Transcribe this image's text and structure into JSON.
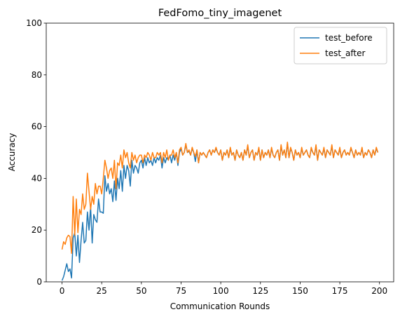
{
  "chart_data": {
    "type": "line",
    "title": "FedFomo_tiny_imagenet",
    "xlabel": "Communication Rounds",
    "ylabel": "Accuracy",
    "x": [
      0,
      1,
      2,
      3,
      4,
      5,
      6,
      7,
      8,
      9,
      10,
      11,
      12,
      13,
      14,
      15,
      16,
      17,
      18,
      19,
      20,
      21,
      22,
      23,
      24,
      25,
      26,
      27,
      28,
      29,
      30,
      31,
      32,
      33,
      34,
      35,
      36,
      37,
      38,
      39,
      40,
      41,
      42,
      43,
      44,
      45,
      46,
      47,
      48,
      49,
      50,
      51,
      52,
      53,
      54,
      55,
      56,
      57,
      58,
      59,
      60,
      61,
      62,
      63,
      64,
      65,
      66,
      67,
      68,
      69,
      70,
      71,
      72,
      73,
      74,
      75,
      76,
      77,
      78,
      79,
      80,
      81,
      82,
      83,
      84,
      85,
      86,
      87,
      88,
      89,
      90,
      91,
      92,
      93,
      94,
      95,
      96,
      97,
      98,
      99,
      100,
      101,
      102,
      103,
      104,
      105,
      106,
      107,
      108,
      109,
      110,
      111,
      112,
      113,
      114,
      115,
      116,
      117,
      118,
      119,
      120,
      121,
      122,
      123,
      124,
      125,
      126,
      127,
      128,
      129,
      130,
      131,
      132,
      133,
      134,
      135,
      136,
      137,
      138,
      139,
      140,
      141,
      142,
      143,
      144,
      145,
      146,
      147,
      148,
      149,
      150,
      151,
      152,
      153,
      154,
      155,
      156,
      157,
      158,
      159,
      160,
      161,
      162,
      163,
      164,
      165,
      166,
      167,
      168,
      169,
      170,
      171,
      172,
      173,
      174,
      175,
      176,
      177,
      178,
      179,
      180,
      181,
      182,
      183,
      184,
      185,
      186,
      187,
      188,
      189,
      190,
      191,
      192,
      193,
      194,
      195,
      196,
      197,
      198,
      199
    ],
    "series": [
      {
        "name": "test_before",
        "color": "#1f77b4",
        "values": [
          0.5,
          2,
          4.5,
          7,
          4,
          5,
          1.5,
          17,
          19,
          10,
          18,
          7.5,
          16,
          23,
          15,
          16,
          27,
          20,
          29,
          15,
          26,
          24,
          23,
          32,
          27,
          27,
          26.5,
          41,
          35,
          38,
          34,
          36,
          31,
          39,
          31.5,
          40,
          36,
          43,
          35,
          45,
          40,
          45,
          43,
          37,
          47,
          42,
          45,
          44,
          42,
          46,
          47,
          44,
          48,
          45,
          48,
          46,
          47,
          45,
          48,
          46,
          48,
          47,
          49,
          44,
          48,
          46,
          48,
          47,
          49,
          46,
          49,
          47,
          50,
          45,
          50,
          51.5,
          49,
          50,
          53,
          50,
          50.5,
          49,
          51.5,
          50,
          46.5,
          51,
          46,
          50,
          49,
          50,
          49,
          48,
          50,
          51,
          49,
          51,
          50,
          51.5,
          50,
          49,
          51,
          47,
          50,
          49,
          51,
          48,
          51.5,
          49,
          50,
          47,
          51,
          49,
          48,
          50,
          47,
          51,
          49,
          52.5,
          48,
          50,
          51,
          47,
          50,
          49,
          51.5,
          47,
          51,
          48,
          50,
          49,
          51,
          48,
          51.5,
          49,
          48,
          50,
          51,
          47,
          52.5,
          49,
          51,
          48,
          53.5,
          48,
          51.5,
          50,
          47,
          51,
          49,
          50,
          48,
          51.5,
          49,
          50,
          51,
          49,
          48,
          51.5,
          50,
          49,
          52.5,
          47,
          51,
          50,
          49,
          51.5,
          48,
          51,
          50,
          49,
          52.5,
          48,
          51,
          50,
          49,
          51.5,
          48,
          50,
          51,
          49,
          50,
          49,
          51.5,
          50,
          48,
          51,
          49,
          50,
          49,
          51.5,
          48,
          50,
          49,
          51,
          50,
          48,
          51,
          49,
          51.5,
          50
        ]
      },
      {
        "name": "test_after",
        "color": "#ff7f0e",
        "values": [
          12.5,
          15.5,
          14.5,
          17,
          18,
          17.5,
          11,
          33,
          18,
          32,
          19,
          28,
          26,
          34,
          28,
          30,
          42,
          35,
          28,
          33,
          30,
          38,
          34,
          37,
          37,
          34,
          40,
          47,
          44,
          40,
          43,
          44,
          40,
          47,
          36,
          46,
          45,
          49,
          44,
          51,
          48,
          50,
          46,
          44,
          50,
          47,
          49,
          46,
          48,
          49,
          49,
          46,
          49,
          48,
          50,
          49,
          47,
          50,
          48,
          48,
          50,
          49,
          50,
          46,
          50,
          48,
          51,
          47,
          49,
          49,
          51,
          48,
          50,
          46,
          51,
          52,
          49,
          50,
          53.5,
          50,
          51,
          49,
          52,
          50,
          48.5,
          51,
          46,
          50,
          49,
          50,
          49,
          48,
          50,
          51,
          49,
          51,
          50,
          52,
          50,
          49,
          51,
          47,
          50,
          49,
          51,
          48,
          52,
          49,
          50,
          47,
          51,
          49,
          48,
          50,
          47,
          51,
          49,
          53,
          48,
          50,
          51,
          47,
          50,
          49,
          52,
          47,
          51,
          48,
          50,
          49,
          51,
          48,
          52,
          49,
          48,
          50,
          51,
          47,
          53,
          49,
          51,
          48,
          54,
          48,
          52,
          50,
          47,
          51,
          49,
          50,
          48,
          52,
          49,
          50,
          51,
          49,
          48,
          52,
          50,
          49,
          53,
          47,
          51,
          50,
          49,
          52,
          48,
          51,
          50,
          49,
          53,
          48,
          51,
          50,
          49,
          52,
          48,
          50,
          51,
          49,
          50,
          49,
          52,
          50,
          48,
          51,
          49,
          50,
          49,
          52,
          48,
          50,
          49,
          51,
          50,
          48,
          51,
          49,
          52,
          50
        ]
      }
    ],
    "xlim": [
      -9.95,
      208.95
    ],
    "xticks": [
      0,
      25,
      50,
      75,
      100,
      125,
      150,
      175,
      200
    ],
    "ylim": [
      0,
      100
    ],
    "yticks": [
      0,
      20,
      40,
      60,
      80,
      100
    ],
    "legend": "upper right"
  }
}
